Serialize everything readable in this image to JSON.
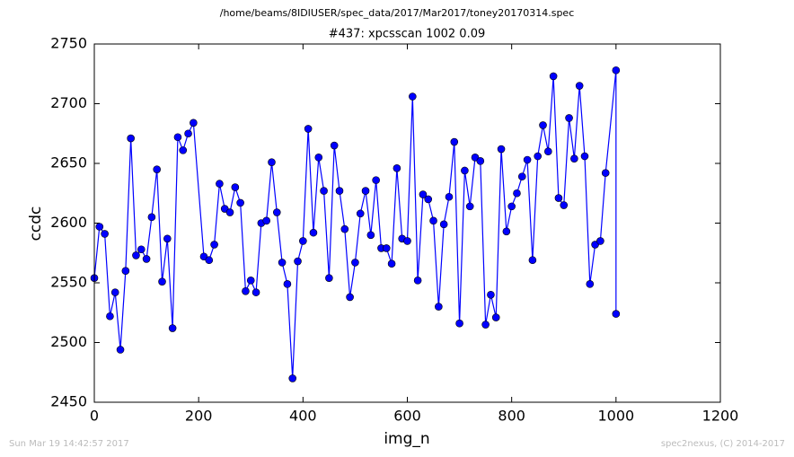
{
  "header": "/home/beams/8IDIUSER/spec_data/2017/Mar2017/toney20170314.spec",
  "footer_left": "Sun Mar 19 14:42:57 2017",
  "footer_right": "spec2nexus, (C) 2014-2017",
  "chart_data": {
    "type": "line",
    "title": "#437: xpcsscan 1002 0.09",
    "x_label": "img_n",
    "y_label": "ccdc",
    "xlim": [
      0,
      1200
    ],
    "xticks": [
      0,
      200,
      400,
      600,
      800,
      1000,
      1200
    ],
    "ylim": [
      2450,
      2750
    ],
    "yticks": [
      2450,
      2500,
      2550,
      2600,
      2650,
      2700,
      2750
    ],
    "marker": true,
    "series": [
      {
        "name": "ccdc",
        "color": "#0000ff",
        "x": [
          0,
          10,
          20,
          30,
          40,
          50,
          60,
          70,
          80,
          90,
          100,
          110,
          120,
          130,
          140,
          150,
          160,
          170,
          180,
          190,
          210,
          220,
          230,
          240,
          250,
          260,
          270,
          280,
          290,
          300,
          310,
          320,
          330,
          340,
          350,
          360,
          370,
          380,
          390,
          400,
          410,
          420,
          430,
          440,
          450,
          460,
          470,
          480,
          490,
          500,
          510,
          520,
          530,
          540,
          550,
          560,
          570,
          580,
          590,
          600,
          610,
          620,
          630,
          640,
          650,
          660,
          670,
          680,
          690,
          700,
          710,
          720,
          730,
          740,
          750,
          760,
          770,
          780,
          790,
          800,
          810,
          820,
          830,
          840,
          850,
          860,
          870,
          880,
          890,
          900,
          910,
          920,
          930,
          940,
          950,
          960,
          970,
          980,
          1000,
          1000
        ],
        "values": [
          2554,
          2597,
          2591,
          2522,
          2542,
          2494,
          2560,
          2671,
          2573,
          2578,
          2570,
          2605,
          2645,
          2551,
          2587,
          2512,
          2672,
          2661,
          2675,
          2684,
          2572,
          2569,
          2582,
          2633,
          2612,
          2609,
          2630,
          2617,
          2543,
          2552,
          2542,
          2600,
          2602,
          2651,
          2609,
          2567,
          2549,
          2470,
          2568,
          2585,
          2679,
          2592,
          2655,
          2627,
          2554,
          2665,
          2627,
          2595,
          2538,
          2567,
          2608,
          2627,
          2590,
          2636,
          2579,
          2579,
          2566,
          2646,
          2587,
          2585,
          2706,
          2552,
          2624,
          2620,
          2602,
          2530,
          2599,
          2622,
          2668,
          2516,
          2644,
          2614,
          2655,
          2652,
          2515,
          2540,
          2521,
          2662,
          2593,
          2614,
          2625,
          2639,
          2653,
          2569,
          2656,
          2682,
          2660,
          2723,
          2621,
          2615,
          2688,
          2654,
          2715,
          2656,
          2549,
          2582,
          2585,
          2642,
          2728,
          2524
        ]
      }
    ]
  }
}
